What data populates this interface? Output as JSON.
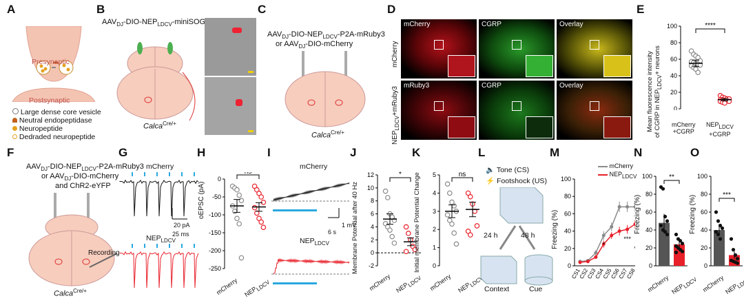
{
  "panels": {
    "A": {
      "letter": "A",
      "presynaptic": "Presynaptic",
      "postsynaptic": "Postsynaptic",
      "legend": [
        "Large dense core vesicle",
        "Neutral endopeptidase",
        "Neuropeptide",
        "Dedraded neuropeptide"
      ]
    },
    "B": {
      "letter": "B",
      "vector_pre": "AAV",
      "vector_sub": "DJ",
      "vector_mid": "-DIO-NEP",
      "vector_sub2": "LDCV",
      "vector_post": "-miniSOG",
      "mouse": "Calca",
      "mouse_sup": "Cre/+"
    },
    "C": {
      "letter": "C",
      "line1_pre": "AAV",
      "line1_sub": "DJ",
      "line1_mid": "-DIO-NEP",
      "line1_sub2": "LDCV",
      "line1_post": "-P2A-mRuby3",
      "line2_pre": "or AAV",
      "line2_sub": "DJ",
      "line2_post": "-DIO-mCherry",
      "mouse": "Calca",
      "mouse_sup": "Cre/+"
    },
    "D": {
      "letter": "D",
      "row1": "mCherry",
      "row2_pre": "NEP",
      "row2_sub": "LDCV",
      "row2_post": "+mRuby3",
      "cols_row1": [
        "mCherry",
        "CGRP",
        "Overlay"
      ],
      "cols_row2": [
        "mRuby3",
        "CGRP",
        "Overlay"
      ]
    },
    "E": {
      "letter": "E",
      "ylabel_l1": "Mean fluorescence intensity",
      "ylabel_l2_pre": "of CGRP in NEP",
      "ylabel_l2_sub": "LDCV",
      "ylabel_l2_post": "+ neurons",
      "sig": "****",
      "x1_l1": "mCherry",
      "x1_l2": "+CGRP",
      "x2_pre": "NEP",
      "x2_sub": "LDCV",
      "x2_post": "+CGRP",
      "ticks": [
        "0",
        "20",
        "40",
        "60",
        "80",
        "100"
      ]
    },
    "F": {
      "letter": "F",
      "line1_pre": "AAV",
      "line1_sub": "DJ",
      "line1_mid": "-DIO-NEP",
      "line1_sub2": "LDCV",
      "line1_post": "-P2A-mRuby3",
      "line2_pre": "or AAV",
      "line2_sub": "DJ",
      "line2_post": "-DIO-mCherry",
      "line3": "and ChR2-eYFP",
      "recording": "Recording",
      "mouse": "Calca",
      "mouse_sup": "Cre/+"
    },
    "G": {
      "letter": "G",
      "trace1": "mCherry",
      "trace2_pre": "NEP",
      "trace2_sub": "LDCV",
      "scale_y": "20 pA",
      "scale_x": "25 ms"
    },
    "H": {
      "letter": "H",
      "ylabel": "oEPSC (pA)",
      "sig": "ns",
      "xcat1": "mCherry",
      "xcat2_pre": "NEP",
      "xcat2_sub": "LDCV",
      "ticks": [
        "0",
        "-50",
        "-100",
        "-150",
        "-200",
        "-250"
      ]
    },
    "I": {
      "letter": "I",
      "trace1": "mCherry",
      "trace2_pre": "NEP",
      "trace2_sub": "LDCV",
      "scale_y": "1 mV",
      "scale_x": "6 s"
    },
    "J": {
      "letter": "J",
      "ylabel": "Membrane Potential after 40 Hz",
      "sig": "*",
      "xcat1": "mCherry",
      "xcat2_pre": "NEP",
      "xcat2_sub": "LDCV",
      "ticks": [
        "-2",
        "0",
        "2",
        "4",
        "6",
        "8",
        "10",
        "12"
      ]
    },
    "K": {
      "letter": "K",
      "ylabel": "Initial membrane Potential Change",
      "sig": "ns",
      "xcat1": "mCherry",
      "xcat2_pre": "NEP",
      "xcat2_sub": "LDCV",
      "ticks": [
        "0",
        "1",
        "2",
        "3",
        "4",
        "5"
      ]
    },
    "L": {
      "letter": "L",
      "tone": "Tone (CS)",
      "shock": "Footshock (US)",
      "t1": "24 h",
      "t2": "48 h",
      "ctx": "Context",
      "cue": "Cue"
    },
    "M": {
      "letter": "M",
      "ylabel": "Freezing (%)",
      "legend1": "mCherry",
      "legend2_pre": "NEP",
      "legend2_sub": "LDCV",
      "ticks": [
        "0",
        "20",
        "40",
        "60",
        "80",
        "100"
      ],
      "stars": [
        "*",
        "***",
        "*"
      ]
    },
    "N": {
      "letter": "N",
      "ylabel": "Freezing (%)",
      "sig": "**",
      "xcat1": "mCherry",
      "xcat2_pre": "NEP",
      "xcat2_sub": "LDCV",
      "ticks": [
        "0",
        "20",
        "40",
        "60",
        "80",
        "100"
      ]
    },
    "O": {
      "letter": "O",
      "ylabel": "Freezing (%)",
      "sig": "***",
      "xcat1": "mCherry",
      "xcat2_pre": "NEP",
      "xcat2_sub": "LDCV",
      "ticks": [
        "0",
        "20",
        "40",
        "60",
        "80",
        "100"
      ]
    }
  },
  "colors": {
    "control": "#8a8a8a",
    "nep": "#e8202a",
    "red_ch": "#d4141c",
    "green_ch": "#2bb52b",
    "yellow_ch": "#d8c21a",
    "blue_stim": "#29a8e0"
  },
  "chart_data": [
    {
      "type": "scatter",
      "panel": "E",
      "categories": [
        "mCherry +CGRP",
        "NEP LDCV +CGRP"
      ],
      "ylim": [
        0,
        100
      ],
      "points": [
        [
          70,
          66,
          64,
          62,
          58,
          57,
          56,
          55,
          54,
          53,
          52,
          50,
          48,
          44
        ],
        [
          16,
          14,
          13,
          12,
          12,
          11,
          11,
          10,
          10,
          9,
          9,
          8,
          7
        ]
      ],
      "mean": [
        55,
        11
      ],
      "sem": [
        4,
        1.5
      ]
    },
    {
      "type": "scatter",
      "panel": "H",
      "categories": [
        "mCherry",
        "NEP LDCV"
      ],
      "ylim": [
        -250,
        0
      ],
      "points": [
        [
          -20,
          -25,
          -30,
          -45,
          -60,
          -75,
          -90,
          -110,
          -125,
          -220
        ],
        [
          -20,
          -30,
          -40,
          -50,
          -65,
          -80,
          -95,
          -110,
          -120,
          -135
        ]
      ],
      "mean": [
        -75,
        -78
      ],
      "sem": [
        18,
        12
      ]
    },
    {
      "type": "scatter",
      "panel": "J",
      "categories": [
        "mCherry",
        "NEP LDCV"
      ],
      "ylim": [
        -2,
        12
      ],
      "points": [
        [
          9.5,
          8.5,
          6,
          5.5,
          5,
          4.5,
          4,
          3.5,
          2.5,
          1.5
        ],
        [
          4,
          3,
          2,
          1,
          0.5,
          0.2
        ]
      ],
      "mean": [
        5.2,
        1.7
      ],
      "sem": [
        0.8,
        0.6
      ]
    },
    {
      "type": "scatter",
      "panel": "K",
      "categories": [
        "mCherry",
        "NEP LDCV"
      ],
      "ylim": [
        0,
        5
      ],
      "points": [
        [
          4.5,
          4,
          3.5,
          3.3,
          3,
          2.8,
          2.5,
          2.3,
          1.8,
          1.2
        ],
        [
          4,
          3.8,
          3.4,
          3,
          2.2,
          1.9,
          1.7
        ]
      ],
      "mean": [
        3.0,
        3.1
      ],
      "sem": [
        0.35,
        0.4
      ]
    },
    {
      "type": "line",
      "panel": "M",
      "x": [
        "CS1",
        "CS2",
        "CS3",
        "CS4",
        "CS5",
        "CS6",
        "CS7",
        "CS8"
      ],
      "ylim": [
        0,
        100
      ],
      "series": [
        {
          "name": "mCherry",
          "values": [
            5,
            6,
            15,
            35,
            45,
            68,
            68,
            68
          ],
          "sem": [
            1,
            1,
            3,
            5,
            5,
            6,
            6,
            6
          ]
        },
        {
          "name": "NEP LDCV",
          "values": [
            4,
            5,
            10,
            25,
            35,
            40,
            42,
            48
          ],
          "sem": [
            1,
            1,
            2,
            4,
            4,
            5,
            5,
            5
          ]
        }
      ]
    },
    {
      "type": "bar",
      "panel": "N",
      "categories": [
        "mCherry",
        "NEP LDCV"
      ],
      "ylim": [
        0,
        100
      ],
      "values": [
        48,
        24
      ],
      "sem": [
        10,
        4
      ],
      "points": [
        [
          88,
          86,
          55,
          50,
          45,
          40,
          38,
          35
        ],
        [
          35,
          30,
          28,
          25,
          22,
          20,
          18,
          16,
          15
        ]
      ]
    },
    {
      "type": "bar",
      "panel": "O",
      "categories": [
        "mCherry",
        "NEP LDCV"
      ],
      "ylim": [
        0,
        100
      ],
      "values": [
        40,
        12
      ],
      "sem": [
        6,
        4
      ],
      "points": [
        [
          60,
          50,
          45,
          42,
          38,
          35,
          30
        ],
        [
          30,
          18,
          12,
          8,
          6,
          5,
          4,
          3
        ]
      ]
    }
  ]
}
